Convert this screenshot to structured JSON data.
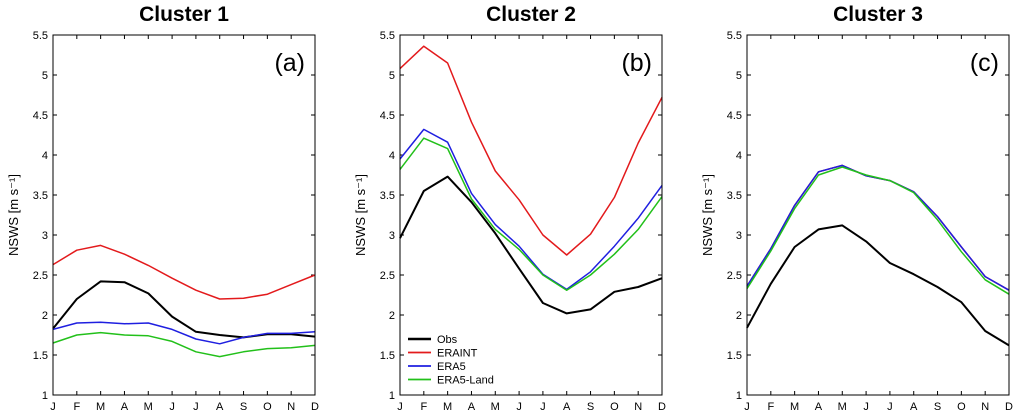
{
  "chart_data": [
    {
      "type": "line",
      "title": "Cluster 1",
      "panel_tag": "(a)",
      "ylabel": "NSWS [m s⁻¹]",
      "ylim": [
        1,
        5.5
      ],
      "yticks": [
        "1",
        "1.5",
        "2",
        "2.5",
        "3",
        "3.5",
        "4",
        "4.5",
        "5",
        "5.5"
      ],
      "x": [
        "J",
        "F",
        "M",
        "A",
        "M",
        "J",
        "J",
        "A",
        "S",
        "O",
        "N",
        "D"
      ],
      "grid": false,
      "series": [
        {
          "name": "Obs",
          "color": "#000000",
          "values": [
            1.83,
            2.2,
            2.42,
            2.41,
            2.27,
            1.98,
            1.79,
            1.75,
            1.72,
            1.76,
            1.76,
            1.73
          ]
        },
        {
          "name": "ERAINT",
          "color": "#e31a1c",
          "values": [
            2.63,
            2.81,
            2.87,
            2.76,
            2.62,
            2.46,
            2.31,
            2.2,
            2.21,
            2.26,
            2.38,
            2.5
          ]
        },
        {
          "name": "ERA5",
          "color": "#1f1fe0",
          "values": [
            1.82,
            1.9,
            1.91,
            1.89,
            1.9,
            1.82,
            1.7,
            1.64,
            1.72,
            1.77,
            1.77,
            1.79
          ]
        },
        {
          "name": "ERA5-Land",
          "color": "#22c01a",
          "values": [
            1.65,
            1.75,
            1.78,
            1.75,
            1.74,
            1.67,
            1.54,
            1.48,
            1.54,
            1.58,
            1.59,
            1.62
          ]
        }
      ]
    },
    {
      "type": "line",
      "title": "Cluster 2",
      "panel_tag": "(b)",
      "ylabel": "NSWS [m s⁻¹]",
      "ylim": [
        1,
        5.5
      ],
      "yticks": [
        "1",
        "1.5",
        "2",
        "2.5",
        "3",
        "3.5",
        "4",
        "4.5",
        "5",
        "5.5"
      ],
      "x": [
        "J",
        "F",
        "M",
        "A",
        "M",
        "J",
        "J",
        "A",
        "S",
        "O",
        "N",
        "D"
      ],
      "grid": false,
      "legend": {
        "position": "bottom-left",
        "entries": [
          "Obs",
          "ERAINT",
          "ERA5",
          "ERA5-Land"
        ]
      },
      "series": [
        {
          "name": "Obs",
          "color": "#000000",
          "values": [
            2.96,
            3.55,
            3.73,
            3.41,
            3.02,
            2.58,
            2.15,
            2.02,
            2.07,
            2.29,
            2.35,
            2.46
          ]
        },
        {
          "name": "ERAINT",
          "color": "#e31a1c",
          "values": [
            5.08,
            5.36,
            5.15,
            4.41,
            3.8,
            3.44,
            3.0,
            2.75,
            3.01,
            3.47,
            4.15,
            4.72
          ]
        },
        {
          "name": "ERA5",
          "color": "#1f1fe0",
          "values": [
            3.95,
            4.32,
            4.16,
            3.52,
            3.13,
            2.86,
            2.51,
            2.32,
            2.54,
            2.86,
            3.21,
            3.62
          ]
        },
        {
          "name": "ERA5-Land",
          "color": "#22c01a",
          "values": [
            3.82,
            4.21,
            4.08,
            3.45,
            3.07,
            2.82,
            2.5,
            2.31,
            2.5,
            2.76,
            3.07,
            3.48
          ]
        }
      ]
    },
    {
      "type": "line",
      "title": "Cluster 3",
      "panel_tag": "(c)",
      "ylabel": "NSWS [m s⁻¹]",
      "ylim": [
        1,
        5.5
      ],
      "yticks": [
        "1",
        "1.5",
        "2",
        "2.5",
        "3",
        "3.5",
        "4",
        "4.5",
        "5",
        "5.5"
      ],
      "x": [
        "J",
        "F",
        "M",
        "A",
        "M",
        "J",
        "J",
        "A",
        "S",
        "O",
        "N",
        "D"
      ],
      "grid": false,
      "series": [
        {
          "name": "Obs",
          "color": "#000000",
          "values": [
            1.84,
            2.39,
            2.85,
            3.07,
            3.12,
            2.92,
            2.65,
            2.51,
            2.35,
            2.16,
            1.8,
            1.62
          ]
        },
        {
          "name": "ERAINT",
          "color": "#e31a1c",
          "values": [
            2.36,
            2.83,
            3.37,
            3.79,
            3.87,
            3.74,
            3.68,
            3.54,
            3.23,
            2.85,
            2.48,
            2.31
          ]
        },
        {
          "name": "ERA5",
          "color": "#1f1fe0",
          "values": [
            2.36,
            2.83,
            3.37,
            3.79,
            3.87,
            3.74,
            3.68,
            3.54,
            3.23,
            2.85,
            2.48,
            2.31
          ]
        },
        {
          "name": "ERA5-Land",
          "color": "#22c01a",
          "values": [
            2.33,
            2.8,
            3.33,
            3.75,
            3.85,
            3.75,
            3.68,
            3.53,
            3.19,
            2.79,
            2.44,
            2.26
          ]
        }
      ]
    }
  ]
}
